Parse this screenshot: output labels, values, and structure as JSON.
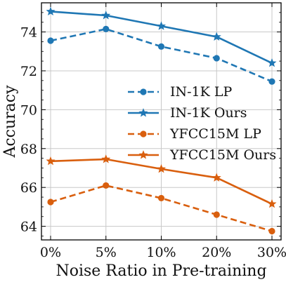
{
  "chart_data": {
    "type": "line",
    "xlabel": "Noise Ratio in Pre-training",
    "ylabel": "Accuracy",
    "categories": [
      "0%",
      "5%",
      "10%",
      "20%",
      "30%"
    ],
    "ylim": [
      63.3,
      75.5
    ],
    "yticks": [
      64,
      66,
      68,
      70,
      72,
      74
    ],
    "grid": true,
    "legend_position": "center-right",
    "series": [
      {
        "name": "IN-1K LP",
        "values": [
          73.55,
          74.15,
          73.25,
          72.65,
          71.45
        ],
        "color": "#1f77b4",
        "dashed": true,
        "marker": "circle"
      },
      {
        "name": "IN-1K Ours",
        "values": [
          75.05,
          74.85,
          74.3,
          73.75,
          72.4
        ],
        "color": "#1f77b4",
        "dashed": false,
        "marker": "star"
      },
      {
        "name": "YFCC15M LP",
        "values": [
          65.25,
          66.1,
          65.45,
          64.6,
          63.75
        ],
        "color": "#d95f0e",
        "dashed": true,
        "marker": "circle"
      },
      {
        "name": "YFCC15M Ours",
        "values": [
          67.35,
          67.45,
          66.95,
          66.5,
          65.15
        ],
        "color": "#d95f0e",
        "dashed": false,
        "marker": "star"
      }
    ]
  }
}
